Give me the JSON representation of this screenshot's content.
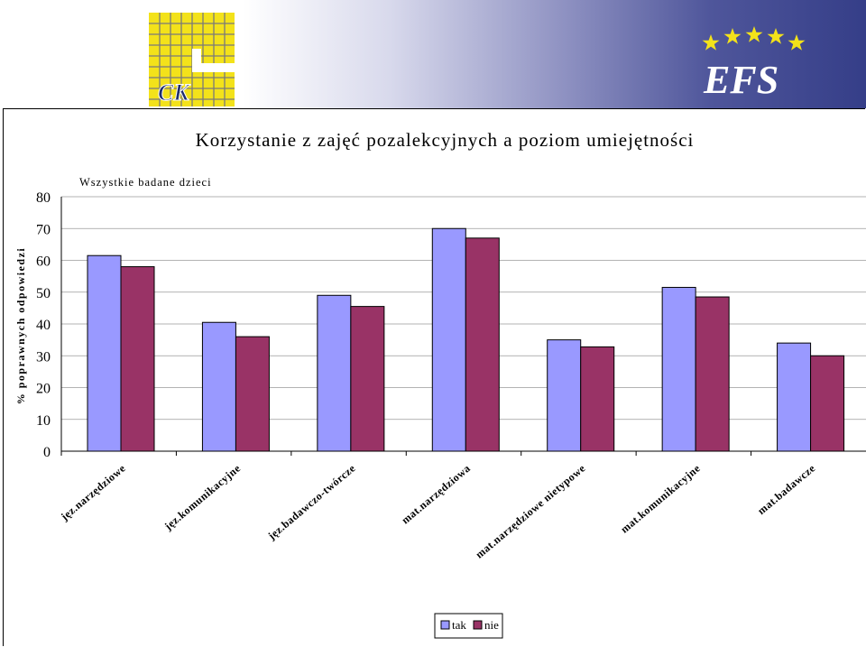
{
  "logos": {
    "left_text": "CK",
    "right_text": "EFS"
  },
  "chart_data": {
    "type": "bar",
    "title": "Korzystanie z zajęć pozalekcyjnych a poziom umiejętności",
    "subtitle": "Wszystkie badane dzieci",
    "ylabel": "% poprawnych odpowiedzi",
    "xlabel": "",
    "ylim": [
      0,
      80
    ],
    "yticks": [
      0,
      10,
      20,
      30,
      40,
      50,
      60,
      70,
      80
    ],
    "grid": true,
    "legend_position": "bottom",
    "categories": [
      "jęz.narzędziowe",
      "jęz.komunikacyjne",
      "jęz.badawczo-twórcze",
      "mat.narzędziowa",
      "mat.narzędziowe nietypowe",
      "mat.komunikacyjne",
      "mat.badawcze"
    ],
    "series": [
      {
        "name": "tak",
        "color": "#9999ff",
        "values": [
          61.5,
          40.5,
          49,
          70,
          35,
          51.5,
          34
        ]
      },
      {
        "name": "nie",
        "color": "#993366",
        "values": [
          58,
          36,
          45.5,
          67,
          32.8,
          48.5,
          30
        ]
      }
    ]
  }
}
